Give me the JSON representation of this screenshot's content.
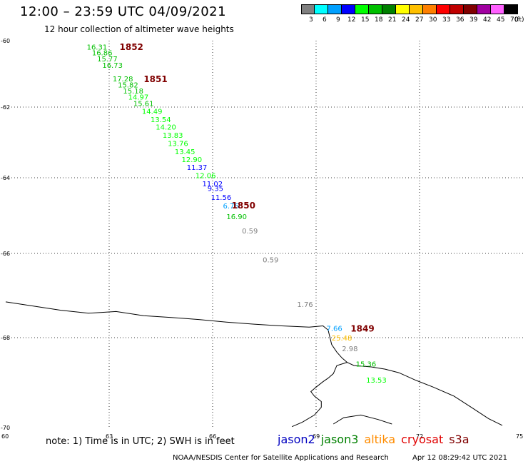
{
  "header": {
    "title": "12:00 – 23:59 UTC 04/09/2021",
    "subtitle": "12 hour collection of altimeter wave heights"
  },
  "legend": {
    "unit": "(ft)",
    "colors": [
      "#808080",
      "#00ffff",
      "#00a0ff",
      "#0000ff",
      "#00ff00",
      "#00c000",
      "#008000",
      "#ffff00",
      "#ffc000",
      "#ff8000",
      "#ff0000",
      "#c00000",
      "#800000",
      "#a000a0",
      "#ff60ff",
      "#000000"
    ],
    "labels": [
      "3",
      "6",
      "9",
      "12",
      "15",
      "18",
      "21",
      "24",
      "27",
      "30",
      "33",
      "36",
      "39",
      "42",
      "45",
      "70"
    ]
  },
  "axes": {
    "lat_labels": [
      "-60",
      "-62",
      "-64",
      "-66",
      "-68",
      "-70"
    ],
    "lon_labels": [
      "60",
      "63",
      "66",
      "69",
      "72",
      "75"
    ]
  },
  "orbits": [
    {
      "id": "1852",
      "lat": -60.17,
      "lon": 63.3
    },
    {
      "id": "1851",
      "lat": -61.14,
      "lon": 64.0
    },
    {
      "id": "1850",
      "lat": -64.72,
      "lon": 66.55
    },
    {
      "id": "1849",
      "lat": -67.77,
      "lon": 70.0
    }
  ],
  "observations": [
    {
      "v": "16.31",
      "lat": -60.18,
      "lon": 62.35,
      "c": "#00c000"
    },
    {
      "v": "16.86",
      "lat": -60.36,
      "lon": 62.5,
      "c": "#00c000"
    },
    {
      "v": "15.77",
      "lat": -60.54,
      "lon": 62.65,
      "c": "#00c000"
    },
    {
      "v": "16.73",
      "lat": -60.73,
      "lon": 62.8,
      "c": "#00c000"
    },
    {
      "v": "17.28",
      "lat": -61.14,
      "lon": 63.1,
      "c": "#00c000"
    },
    {
      "v": "15.82",
      "lat": -61.32,
      "lon": 63.25,
      "c": "#00c000"
    },
    {
      "v": "15.18",
      "lat": -61.51,
      "lon": 63.4,
      "c": "#00c000"
    },
    {
      "v": "14.97",
      "lat": -61.69,
      "lon": 63.55,
      "c": "#00ff00"
    },
    {
      "v": "15.61",
      "lat": -61.88,
      "lon": 63.7,
      "c": "#00c000"
    },
    {
      "v": "14.49",
      "lat": -62.11,
      "lon": 63.95,
      "c": "#00ff00"
    },
    {
      "v": "13.54",
      "lat": -62.34,
      "lon": 64.2,
      "c": "#00ff00"
    },
    {
      "v": "14.20",
      "lat": -62.56,
      "lon": 64.35,
      "c": "#00ff00"
    },
    {
      "v": "13.83",
      "lat": -62.79,
      "lon": 64.55,
      "c": "#00ff00"
    },
    {
      "v": "13.76",
      "lat": -63.02,
      "lon": 64.7,
      "c": "#00ff00"
    },
    {
      "v": "13.45",
      "lat": -63.25,
      "lon": 64.9,
      "c": "#00ff00"
    },
    {
      "v": "12.90",
      "lat": -63.47,
      "lon": 65.1,
      "c": "#00ff00"
    },
    {
      "v": "11.37",
      "lat": -63.7,
      "lon": 65.25,
      "c": "#0000ff"
    },
    {
      "v": "12.06",
      "lat": -63.93,
      "lon": 65.5,
      "c": "#00ff00"
    },
    {
      "v": "11.02",
      "lat": -64.15,
      "lon": 65.7,
      "c": "#0000ff"
    },
    {
      "v": "9.35",
      "lat": -64.27,
      "lon": 65.85,
      "c": "#0000ff"
    },
    {
      "v": "11.56",
      "lat": -64.51,
      "lon": 65.95,
      "c": "#0000ff"
    },
    {
      "v": "6.76",
      "lat": -64.74,
      "lon": 66.3,
      "c": "#00a0ff"
    },
    {
      "v": "16.90",
      "lat": -65.02,
      "lon": 66.4,
      "c": "#00c000"
    },
    {
      "v": "0.59",
      "lat": -65.4,
      "lon": 66.85,
      "c": "#808080"
    },
    {
      "v": "0.59",
      "lat": -66.14,
      "lon": 67.45,
      "c": "#808080"
    },
    {
      "v": "1.76",
      "lat": -67.2,
      "lon": 68.45,
      "c": "#808080"
    },
    {
      "v": "7.66",
      "lat": -67.77,
      "lon": 69.3,
      "c": "#00a0ff"
    },
    {
      "v": "25.48",
      "lat": -68.0,
      "lon": 69.45,
      "c": "#ffc000"
    },
    {
      "v": "2.98",
      "lat": -68.24,
      "lon": 69.75,
      "c": "#808080"
    },
    {
      "v": "15.36",
      "lat": -68.58,
      "lon": 70.15,
      "c": "#00c000"
    },
    {
      "v": "13.53",
      "lat": -68.94,
      "lon": 70.45,
      "c": "#00ff00"
    }
  ],
  "coastline": [
    [
      [
        60.0,
        -67.15
      ],
      [
        60.8,
        -67.25
      ],
      [
        61.6,
        -67.35
      ],
      [
        62.4,
        -67.42
      ],
      [
        63.2,
        -67.38
      ],
      [
        64.0,
        -67.48
      ],
      [
        64.8,
        -67.52
      ],
      [
        65.6,
        -67.57
      ],
      [
        66.4,
        -67.63
      ],
      [
        67.2,
        -67.68
      ],
      [
        68.0,
        -67.72
      ],
      [
        68.8,
        -67.75
      ],
      [
        69.2,
        -67.72
      ],
      [
        69.35,
        -67.82
      ],
      [
        69.45,
        -68.15
      ],
      [
        69.6,
        -68.32
      ],
      [
        69.75,
        -68.45
      ],
      [
        69.9,
        -68.55
      ],
      [
        70.1,
        -68.62
      ],
      [
        70.6,
        -68.65
      ],
      [
        71.0,
        -68.7
      ],
      [
        71.4,
        -68.78
      ],
      [
        71.9,
        -68.95
      ],
      [
        72.4,
        -69.1
      ],
      [
        73.0,
        -69.3
      ],
      [
        73.5,
        -69.55
      ],
      [
        74.0,
        -69.8
      ],
      [
        74.4,
        -69.95
      ]
    ],
    [
      [
        69.9,
        -68.55
      ],
      [
        69.6,
        -68.62
      ],
      [
        69.5,
        -68.8
      ],
      [
        69.35,
        -68.9
      ],
      [
        69.2,
        -68.98
      ],
      [
        69.0,
        -69.1
      ],
      [
        68.85,
        -69.2
      ],
      [
        68.95,
        -69.3
      ],
      [
        69.15,
        -69.42
      ],
      [
        69.15,
        -69.55
      ],
      [
        68.95,
        -69.72
      ],
      [
        68.6,
        -69.88
      ],
      [
        68.3,
        -69.98
      ]
    ],
    [
      [
        69.5,
        -69.92
      ],
      [
        69.8,
        -69.78
      ],
      [
        70.3,
        -69.72
      ],
      [
        70.8,
        -69.82
      ],
      [
        71.2,
        -69.92
      ]
    ]
  ],
  "footer": {
    "note": "note: 1) Time is in UTC; 2) SWH is in feet",
    "satellites": [
      {
        "name": "jason2",
        "color": "#0000c0"
      },
      {
        "name": "jason3",
        "color": "#008000"
      },
      {
        "name": "altika",
        "color": "#ff8c00"
      },
      {
        "name": "cryosat",
        "color": "#e00000"
      },
      {
        "name": "s3a",
        "color": "#800000"
      }
    ],
    "credit": "NOAA/NESDIS Center for Satellite Applications and Research",
    "timestamp": "Apr 12 08:29:42 UTC 2021"
  }
}
